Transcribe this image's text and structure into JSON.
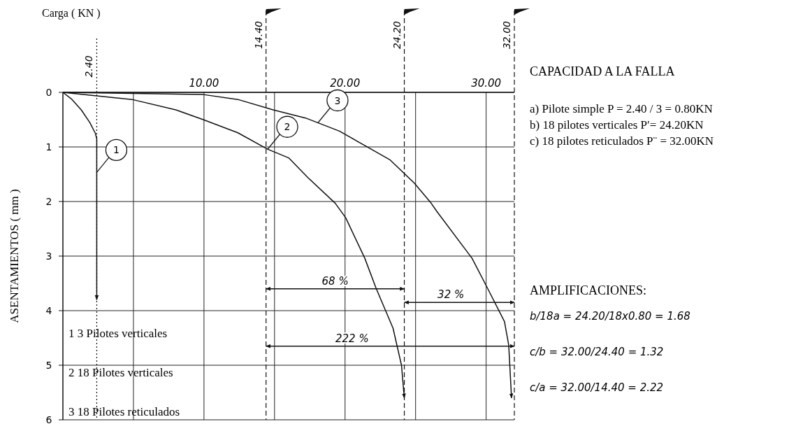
{
  "chart_data": {
    "type": "line",
    "ylabel": "ASENTAMIENTOS ( mm )",
    "xlim": [
      0,
      32
    ],
    "ylim": [
      6,
      0
    ],
    "xticks": [
      {
        "value": 5,
        "label": null
      },
      {
        "value": 10,
        "label": "10.00"
      },
      {
        "value": 15,
        "label": null
      },
      {
        "value": 20,
        "label": "20.00"
      },
      {
        "value": 25,
        "label": null
      },
      {
        "value": 30,
        "label": "30.00"
      }
    ],
    "yticks": [
      0,
      1,
      2,
      3,
      4,
      5,
      6
    ],
    "grid": true,
    "line_style": "solid",
    "marker": "none",
    "series": [
      {
        "name": "1",
        "color": "#111111",
        "x": [
          0,
          0.6,
          1.3,
          1.9,
          2.3,
          2.4,
          2.4
        ],
        "values": [
          0,
          0.12,
          0.32,
          0.55,
          0.75,
          0.85,
          3.8
        ]
      },
      {
        "name": "2",
        "color": "#111111",
        "x": [
          0,
          4.9,
          8,
          9.95,
          12.4,
          14.5,
          16,
          17.4,
          19.3,
          20.05,
          21.4,
          22.2,
          23.4,
          24,
          24.2
        ],
        "values": [
          0,
          0.13,
          0.32,
          0.5,
          0.74,
          1.04,
          1.2,
          1.57,
          2.03,
          2.3,
          3.04,
          3.59,
          4.32,
          5,
          5.6
        ]
      },
      {
        "name": "3",
        "color": "#111111",
        "x": [
          0,
          9.95,
          12.4,
          14.9,
          17.2,
          19.6,
          21.5,
          23.2,
          24.9,
          26.1,
          26.5,
          29,
          30.1,
          31.3,
          31.6,
          31.8
        ],
        "values": [
          0,
          0.04,
          0.13,
          0.32,
          0.47,
          0.71,
          0.99,
          1.24,
          1.66,
          2.03,
          2.18,
          3.04,
          3.59,
          4.2,
          4.63,
          5.6
        ]
      },
      {
        "color": "#111111",
        "x": [
          14.4,
          24.2
        ],
        "values": [
          3.6,
          3.6
        ]
      },
      {
        "color": "#111111",
        "x": [
          24.2,
          32
        ],
        "values": [
          3.85,
          3.85
        ]
      },
      {
        "color": "#111111",
        "x": [
          14.4,
          32
        ],
        "values": [
          4.65,
          4.65
        ]
      }
    ],
    "ref_lines": [
      {
        "axis": "x",
        "value": 2.4,
        "label": "2.40",
        "line_style": "dotted"
      },
      {
        "axis": "x",
        "value": 14.4,
        "label": "14.40",
        "line_style": "dashed"
      },
      {
        "axis": "x",
        "value": 24.2,
        "label": "24.20",
        "line_style": "dashed"
      },
      {
        "axis": "x",
        "value": 32,
        "label": "32.00",
        "line_style": "dashed"
      }
    ],
    "annotations": [
      {
        "text": "68 %",
        "x": 19.3,
        "y": 3.6
      },
      {
        "text": "32 %",
        "x": 27.5,
        "y": 3.85
      },
      {
        "text": "222 %",
        "x": 20.5,
        "y": 4.65
      },
      "Carga ( KN )",
      "1  3 Pilotes verticales",
      "2  18 Pilotes verticales",
      "3 18 Pilotes reticulados",
      "CAPACIDAD A LA FALLA",
      "a) Pilote simple P = 2.40 / 3 = 0.80KN",
      "b) 18 pilotes verticales P′= 24.20KN",
      "c) 18 pilotes reticulados P¨ = 32.00KN",
      "AMPLIFICACIONES:",
      "b/18a = 24.20/18x0.80 = 1.68",
      "c/b = 32.00/24.40 = 1.32",
      "c/a = 32.00/14.40 = 2.22"
    ]
  }
}
